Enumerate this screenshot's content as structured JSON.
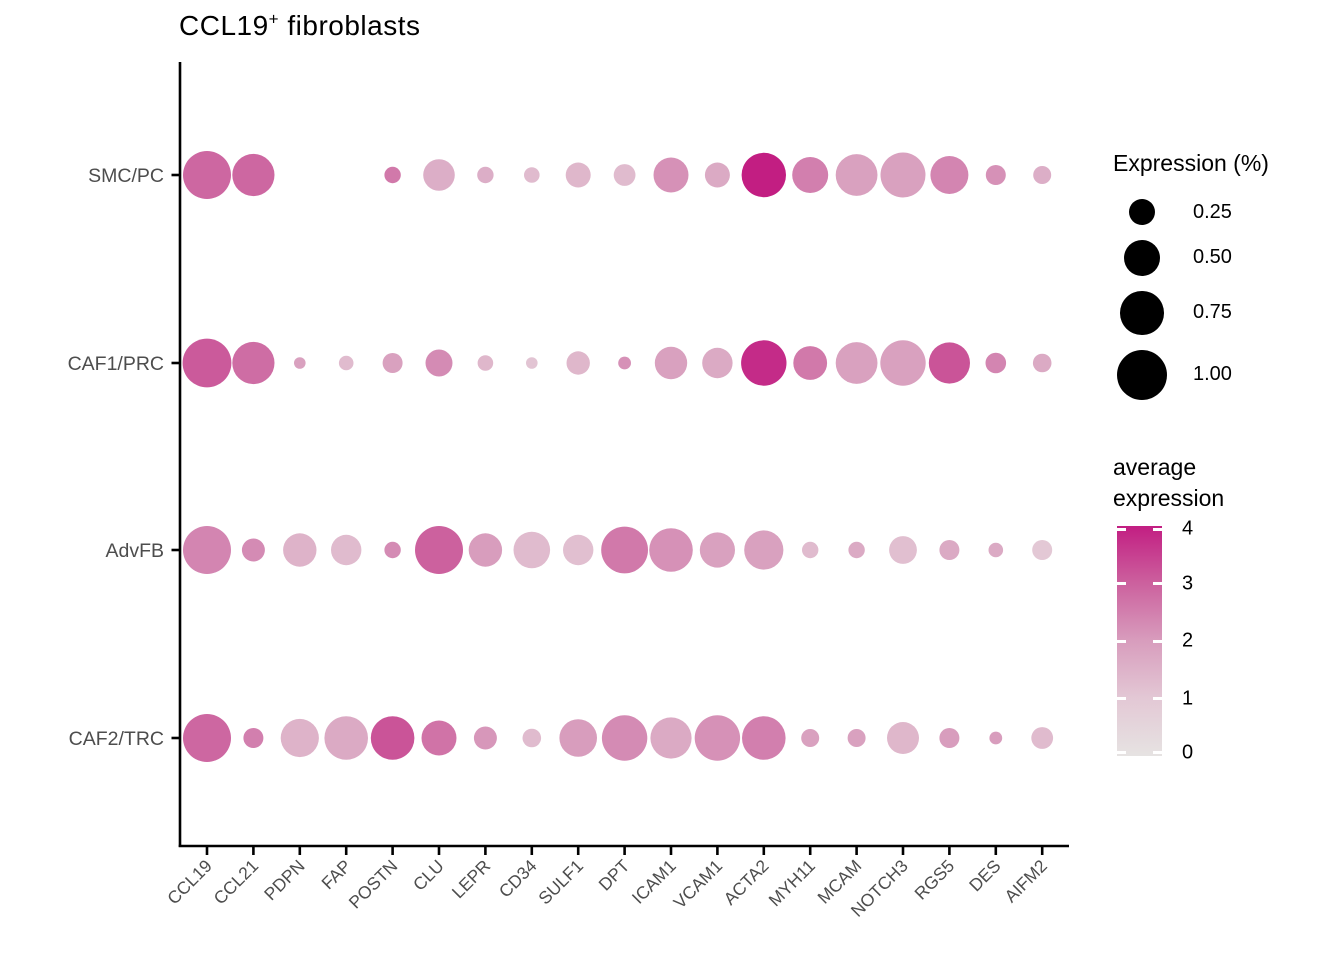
{
  "title": {
    "text": "CCL19",
    "superscript": "+",
    "suffix": " fibroblasts"
  },
  "chart_data": {
    "type": "scatter",
    "subtype": "dot-plot",
    "title": "CCL19+ fibroblasts",
    "x_categories": [
      "CCL19",
      "CCL21",
      "PDPN",
      "FAP",
      "POSTN",
      "CLU",
      "LEPR",
      "CD34",
      "SULF1",
      "DPT",
      "ICAM1",
      "VCAM1",
      "ACTA2",
      "MYH11",
      "MCAM",
      "NOTCH3",
      "RGS5",
      "DES",
      "AIFM2"
    ],
    "y_categories": [
      "SMC/PC",
      "CAF1/PRC",
      "AdvFB",
      "CAF2/TRC"
    ],
    "series": [
      {
        "name": "SMC/PC",
        "expression_pct": [
          0.92,
          0.7,
          null,
          null,
          0.09,
          0.38,
          0.09,
          0.08,
          0.23,
          0.17,
          0.47,
          0.23,
          0.78,
          0.5,
          0.69,
          0.8,
          0.56,
          0.14,
          0.11
        ],
        "avg_expression": [
          2.9,
          2.9,
          null,
          null,
          2.6,
          1.6,
          1.6,
          1.3,
          1.4,
          1.3,
          2.2,
          1.7,
          4.0,
          2.5,
          1.9,
          1.9,
          2.4,
          2.2,
          1.6
        ]
      },
      {
        "name": "CAF1/PRC",
        "expression_pct": [
          0.95,
          0.7,
          0.04,
          0.07,
          0.14,
          0.27,
          0.08,
          0.04,
          0.2,
          0.05,
          0.4,
          0.35,
          0.82,
          0.44,
          0.69,
          0.82,
          0.67,
          0.15,
          0.12
        ],
        "avg_expression": [
          3.1,
          2.8,
          1.9,
          1.3,
          1.9,
          2.3,
          1.4,
          1.1,
          1.4,
          2.2,
          1.9,
          1.7,
          3.8,
          2.6,
          1.9,
          1.9,
          3.2,
          2.4,
          1.7
        ]
      },
      {
        "name": "AdvFB",
        "expression_pct": [
          0.92,
          0.19,
          0.43,
          0.35,
          0.09,
          0.92,
          0.43,
          0.52,
          0.35,
          0.87,
          0.75,
          0.48,
          0.6,
          0.09,
          0.09,
          0.29,
          0.14,
          0.07,
          0.14
        ],
        "avg_expression": [
          2.4,
          2.3,
          1.5,
          1.3,
          2.3,
          3.0,
          2.0,
          1.3,
          1.2,
          2.6,
          2.2,
          1.9,
          1.9,
          1.3,
          1.7,
          1.2,
          1.7,
          1.7,
          1.0
        ]
      },
      {
        "name": "CAF2/TRC",
        "expression_pct": [
          0.92,
          0.14,
          0.57,
          0.75,
          0.75,
          0.47,
          0.19,
          0.12,
          0.55,
          0.82,
          0.67,
          0.82,
          0.75,
          0.11,
          0.11,
          0.39,
          0.14,
          0.05,
          0.17
        ],
        "avg_expression": [
          2.9,
          2.5,
          1.5,
          1.7,
          3.2,
          2.7,
          2.1,
          1.3,
          2.0,
          2.3,
          1.7,
          2.2,
          2.5,
          1.9,
          1.9,
          1.4,
          2.0,
          2.0,
          1.3
        ]
      }
    ],
    "size_legend": {
      "title": "Expression (%)",
      "values": [
        "0.25",
        "0.50",
        "0.75",
        "1.00"
      ]
    },
    "color_legend": {
      "title_line1": "average",
      "title_line2": "expression",
      "ticks": [
        "4",
        "3",
        "2",
        "1",
        "0"
      ],
      "min": 0,
      "max": 4,
      "color_stops": [
        "#E6E3E2",
        "#E3C8D5",
        "#D89DBD",
        "#CC619E",
        "#C21E82"
      ]
    },
    "layout": {
      "grid": false,
      "legend_position": "right",
      "x_label_rotation": 45,
      "axis_color": "#000000",
      "label_color": "#4d4d4d"
    }
  }
}
